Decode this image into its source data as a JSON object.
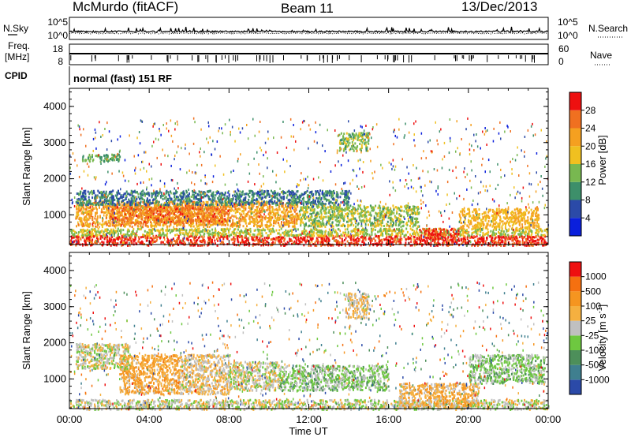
{
  "header": {
    "station": "McMurdo (fitACF)",
    "beam": "Beam 11",
    "date": "13/Dec/2013"
  },
  "noise_panel": {
    "left_label": "N.Sky",
    "right_label": "N.Search",
    "left_ticks": [
      "10^5",
      "10^0"
    ],
    "right_ticks": [
      "10^5",
      "10^0"
    ]
  },
  "freq_panel": {
    "left_label_1": "Freq.",
    "left_label_2": "[MHz]",
    "right_label": "Nave",
    "left_ticks": [
      "18",
      "8"
    ],
    "right_ticks": [
      "60",
      "0"
    ]
  },
  "cpid": {
    "label": "CPID",
    "value": "normal (fast) 151 RF"
  },
  "colors": {
    "power_scale": [
      "#0a1fdc",
      "#2b4aa8",
      "#3d8f6a",
      "#78b850",
      "#f0c020",
      "#f5a020",
      "#f07020",
      "#ee1010"
    ],
    "velocity_scale": [
      "#2b4aa8",
      "#3f7f8f",
      "#4d8f5a",
      "#6ec840",
      "#c0c0c0",
      "#f5b040",
      "#f59520",
      "#f57010",
      "#ee1010"
    ]
  },
  "chart_data": [
    {
      "type": "heatmap",
      "title": "Power",
      "ylabel": "Slant Range [km]",
      "xlabel": "",
      "ylim": [
        180,
        4500
      ],
      "yticks": [
        "1000",
        "2000",
        "3000",
        "4000"
      ],
      "x_ticks": [
        "00:00",
        "04:00",
        "08:00",
        "12:00",
        "16:00",
        "20:00",
        "00:00"
      ],
      "colorbar_label": "Power [dB]",
      "colorbar_ticks": [
        "4",
        "8",
        "12",
        "16",
        "20",
        "24",
        "28"
      ],
      "colorbar_range": [
        0,
        32
      ],
      "features": [
        {
          "t0": 0.0,
          "t1": 24.0,
          "r0": 180,
          "r1": 450,
          "level": 29
        },
        {
          "t0": 0.0,
          "t1": 24.0,
          "r0": 450,
          "r1": 650,
          "level": 16
        },
        {
          "t0": 0.3,
          "t1": 11.5,
          "r0": 700,
          "r1": 1400,
          "level": 22
        },
        {
          "t0": 2.0,
          "t1": 8.0,
          "r0": 800,
          "r1": 1300,
          "level": 25
        },
        {
          "t0": 0.3,
          "t1": 14.0,
          "r0": 1300,
          "r1": 1700,
          "level": 9
        },
        {
          "t0": 11.5,
          "t1": 17.5,
          "r0": 700,
          "r1": 1300,
          "level": 15
        },
        {
          "t0": 17.5,
          "t1": 19.5,
          "r0": 300,
          "r1": 650,
          "level": 29
        },
        {
          "t0": 19.5,
          "t1": 23.5,
          "r0": 650,
          "r1": 1200,
          "level": 20
        },
        {
          "t0": 13.5,
          "t1": 15.0,
          "r0": 2800,
          "r1": 3300,
          "level": 14
        },
        {
          "t0": 0.6,
          "t1": 2.5,
          "r0": 2500,
          "r1": 2700,
          "level": 12
        }
      ]
    },
    {
      "type": "heatmap",
      "title": "Velocity",
      "ylabel": "Slant Range [km]",
      "xlabel": "Time UT",
      "ylim": [
        180,
        4500
      ],
      "yticks": [
        "1000",
        "2000",
        "3000",
        "4000"
      ],
      "x_ticks": [
        "00:00",
        "04:00",
        "08:00",
        "12:00",
        "16:00",
        "20:00",
        "00:00"
      ],
      "colorbar_label": "Velocity [m s",
      "colorbar_label_sup": "-1",
      "colorbar_label_end": "]",
      "colorbar_ticks": [
        "-1000",
        "-500",
        "-100",
        "-25",
        "25",
        "100",
        "500",
        "1000"
      ],
      "colorbar_range": [
        -1250,
        1250
      ],
      "features": [
        {
          "t0": 0.0,
          "t1": 24.0,
          "r0": 180,
          "r1": 450,
          "level": 0
        },
        {
          "t0": 2.5,
          "t1": 5.5,
          "r0": 600,
          "r1": 1700,
          "level": 400
        },
        {
          "t0": 5.5,
          "t1": 8.0,
          "r0": 600,
          "r1": 1700,
          "level": 150
        },
        {
          "t0": 8.0,
          "t1": 10.5,
          "r0": 700,
          "r1": 1500,
          "level": 20
        },
        {
          "t0": 10.5,
          "t1": 16.0,
          "r0": 700,
          "r1": 1400,
          "level": -200
        },
        {
          "t0": 16.5,
          "t1": 20.5,
          "r0": 250,
          "r1": 900,
          "level": 300
        },
        {
          "t0": 20.0,
          "t1": 23.8,
          "r0": 900,
          "r1": 1700,
          "level": -200
        },
        {
          "t0": 13.8,
          "t1": 15.0,
          "r0": 2700,
          "r1": 3400,
          "level": 150
        },
        {
          "t0": 0.3,
          "t1": 3.0,
          "r0": 1300,
          "r1": 2000,
          "level": 0
        }
      ]
    }
  ]
}
